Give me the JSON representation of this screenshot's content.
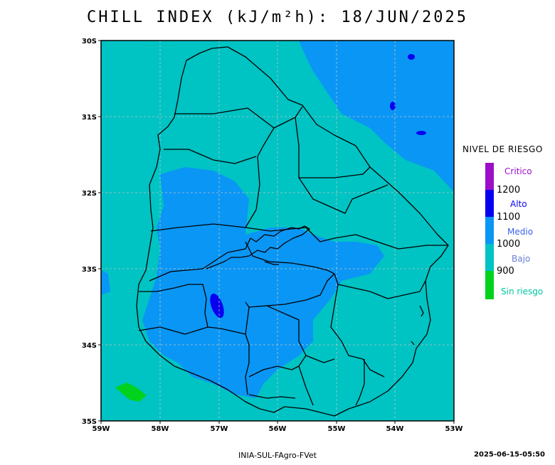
{
  "title": "CHILL INDEX (kJ/m²h): 18/JUN/2025",
  "map": {
    "lat_ticks": [
      "30S",
      "31S",
      "32S",
      "33S",
      "34S",
      "35S"
    ],
    "lon_ticks": [
      "59W",
      "58W",
      "57W",
      "56W",
      "55W",
      "54W",
      "53W"
    ]
  },
  "legend": {
    "title": "NIVEL DE RIESGO",
    "categories": [
      {
        "label": "Critico",
        "color": "#9b0fc8",
        "label_color": "#9b0fc8"
      },
      {
        "label": "Alto",
        "color": "#0a00f0",
        "label_color": "#0a00f0"
      },
      {
        "label": "Medio",
        "color": "#0a96f5",
        "label_color": "#3a5ff0"
      },
      {
        "label": "Bajo",
        "color": "#00c3c3",
        "label_color": "#6a80d8"
      },
      {
        "label": "Sin riesgo",
        "color": "#00d21e",
        "label_color": "#00c8a0"
      }
    ],
    "bounds": [
      "1200",
      "1100",
      "1000",
      "900"
    ]
  },
  "footer": {
    "credit": "INIA-SUL-FAgro-FVet",
    "timestamp": "2025-06-15-05:50"
  }
}
